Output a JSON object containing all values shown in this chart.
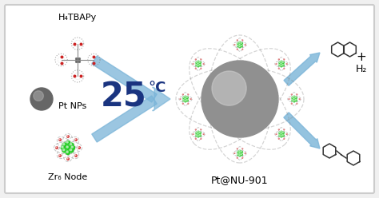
{
  "bg_color": "#f0f0f0",
  "border_color": "#cccccc",
  "label_h4tbapy": "H₄TBAPy",
  "label_pt_nps": "Pt NPs",
  "label_zr6": "Zr₆ Node",
  "label_product": "Pt@NU-901",
  "label_temp": "25",
  "label_degree_c": "°C",
  "label_plus": "+",
  "label_h2": "H₂",
  "arrow_color": "#7ab4d8",
  "dark_blue": "#1a3480",
  "green_color": "#22cc22",
  "red_color": "#cc2222",
  "gray_dark": "#555555",
  "gray_sphere": "#909090",
  "gray_sphere_hi": "#d0d0d0",
  "white": "#ffffff",
  "line_color": "#888888"
}
